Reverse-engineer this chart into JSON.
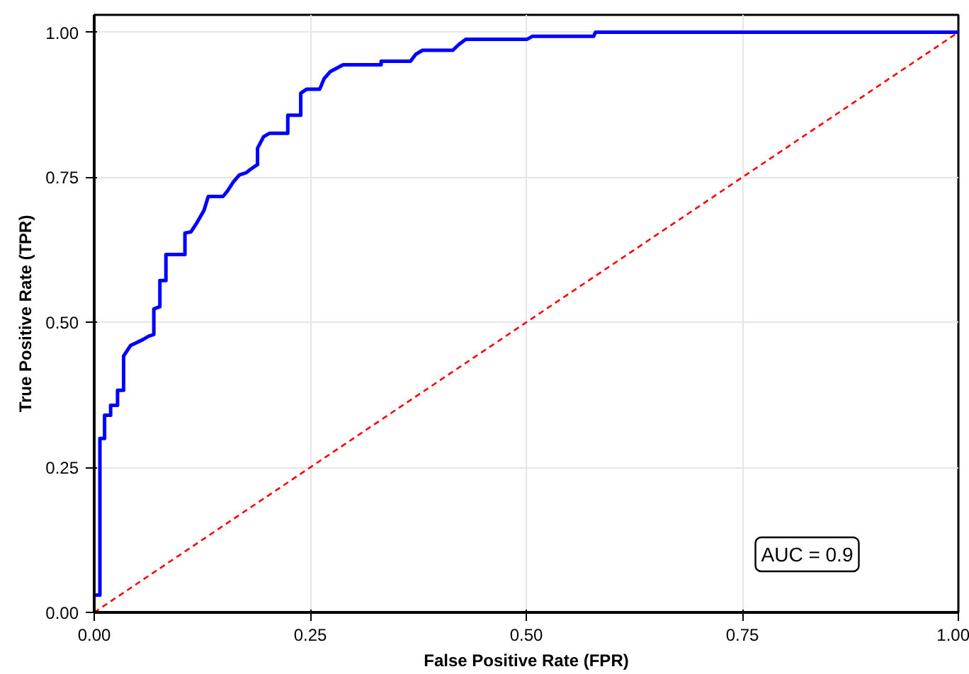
{
  "chart_data": {
    "type": "line",
    "xlabel": "False Positive Rate (FPR)",
    "ylabel": "True Positive Rate (TPR)",
    "xlim": [
      0,
      1
    ],
    "ylim": [
      0,
      1.03
    ],
    "xticks": [
      {
        "value": 0,
        "label": "0.00"
      },
      {
        "value": 0.25,
        "label": "0.25"
      },
      {
        "value": 0.5,
        "label": "0.50"
      },
      {
        "value": 0.75,
        "label": "0.75"
      },
      {
        "value": 1,
        "label": "1.00"
      }
    ],
    "yticks": [
      {
        "value": 0,
        "label": "0.00"
      },
      {
        "value": 0.25,
        "label": "0.25"
      },
      {
        "value": 0.5,
        "label": "0.50"
      },
      {
        "value": 0.75,
        "label": "0.75"
      },
      {
        "value": 1,
        "label": "1.00"
      }
    ],
    "grid": true,
    "annotations": [
      "AUC = 0.9"
    ],
    "series": [
      {
        "color": "#0000ff",
        "line_style": "solid",
        "x": [
          0,
          0.0066,
          0.0066,
          0.012,
          0.012,
          0.019,
          0.019,
          0.027,
          0.027,
          0.034,
          0.034,
          0.042,
          0.049,
          0.056,
          0.063,
          0.069,
          0.069,
          0.076,
          0.076,
          0.083,
          0.083,
          0.105,
          0.105,
          0.112,
          0.119,
          0.127,
          0.132,
          0.149,
          0.154,
          0.161,
          0.168,
          0.176,
          0.181,
          0.189,
          0.189,
          0.196,
          0.203,
          0.224,
          0.224,
          0.239,
          0.239,
          0.246,
          0.261,
          0.266,
          0.273,
          0.288,
          0.332,
          0.332,
          0.366,
          0.372,
          0.38,
          0.415,
          0.422,
          0.43,
          0.501,
          0.507,
          0.578,
          0.58,
          1.0
        ],
        "values": [
          0.03,
          0.03,
          0.3,
          0.3,
          0.34,
          0.34,
          0.357,
          0.357,
          0.383,
          0.383,
          0.442,
          0.46,
          0.465,
          0.47,
          0.476,
          0.479,
          0.523,
          0.527,
          0.572,
          0.572,
          0.617,
          0.617,
          0.654,
          0.656,
          0.672,
          0.693,
          0.717,
          0.717,
          0.726,
          0.742,
          0.754,
          0.758,
          0.764,
          0.772,
          0.8,
          0.82,
          0.826,
          0.826,
          0.857,
          0.857,
          0.895,
          0.902,
          0.902,
          0.92,
          0.932,
          0.944,
          0.944,
          0.95,
          0.95,
          0.962,
          0.969,
          0.969,
          0.979,
          0.988,
          0.988,
          0.993,
          0.993,
          1.0,
          1.0
        ]
      },
      {
        "color": "#ff0000",
        "line_style": "dashed",
        "x": [
          0,
          1
        ],
        "values": [
          0,
          1
        ]
      }
    ]
  }
}
